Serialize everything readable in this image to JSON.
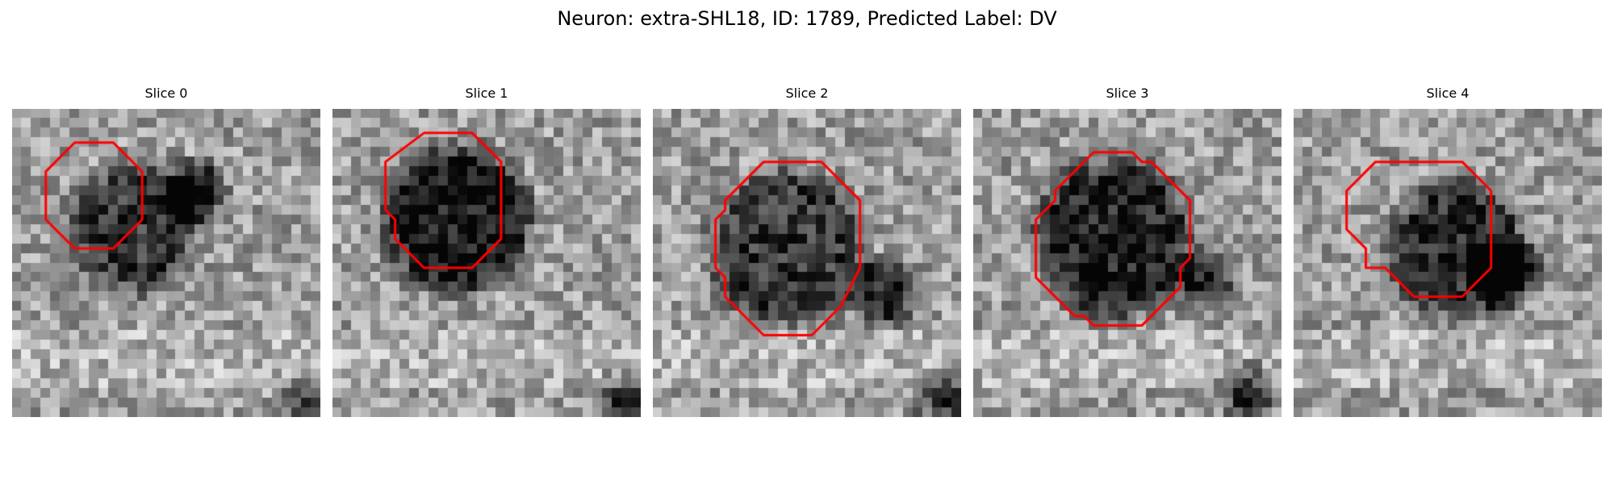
{
  "figure": {
    "title": "Neuron: extra-SHL18, ID: 1789, Predicted Label: DV"
  },
  "panels": [
    {
      "title": "Slice 0",
      "seed": 11,
      "blob": {
        "cx": 12.5,
        "cy": 12.5,
        "r": 6.0,
        "darkness": 0.4
      },
      "extra_blob": {
        "cx": 19.0,
        "cy": 8.5,
        "r": 2.5,
        "darkness": 0.6
      },
      "corner_dark": {
        "x": 30,
        "y": 30,
        "darkness": 0.45
      },
      "bright_bottom": true,
      "contour": [
        [
          6,
          3
        ],
        [
          10,
          3
        ],
        [
          13,
          6
        ],
        [
          13,
          11
        ],
        [
          10,
          14
        ],
        [
          6,
          14
        ],
        [
          3,
          11
        ],
        [
          3,
          6
        ]
      ]
    },
    {
      "title": "Slice 1",
      "seed": 23,
      "blob": {
        "cx": 13.0,
        "cy": 11.5,
        "r": 7.0,
        "darkness": 0.55
      },
      "extra_blob": null,
      "corner_dark": {
        "x": 30,
        "y": 30,
        "darkness": 0.6
      },
      "bright_bottom": true,
      "contour": [
        [
          9,
          2
        ],
        [
          14,
          2
        ],
        [
          17,
          5
        ],
        [
          17,
          13
        ],
        [
          14,
          16
        ],
        [
          9,
          16
        ],
        [
          6,
          13
        ],
        [
          6,
          11
        ],
        [
          5,
          10
        ],
        [
          5,
          5
        ]
      ]
    },
    {
      "title": "Slice 2",
      "seed": 37,
      "blob": {
        "cx": 14.0,
        "cy": 14.5,
        "r": 7.5,
        "darkness": 0.4
      },
      "extra_blob": {
        "cx": 24.0,
        "cy": 19.0,
        "r": 3.0,
        "darkness": 0.5
      },
      "corner_dark": {
        "x": 30,
        "y": 30,
        "darkness": 0.55
      },
      "bright_bottom": true,
      "contour": [
        [
          11,
          5
        ],
        [
          17,
          5
        ],
        [
          21,
          9
        ],
        [
          21,
          16
        ],
        [
          20,
          18
        ],
        [
          19,
          20
        ],
        [
          16,
          23
        ],
        [
          11,
          23
        ],
        [
          7,
          19
        ],
        [
          7,
          17
        ],
        [
          6,
          16
        ],
        [
          6,
          11
        ],
        [
          7,
          10
        ],
        [
          7,
          9
        ]
      ]
    },
    {
      "title": "Slice 3",
      "seed": 53,
      "blob": {
        "cx": 14.5,
        "cy": 13.5,
        "r": 7.5,
        "darkness": 0.5
      },
      "extra_blob": {
        "cx": 24.0,
        "cy": 18.0,
        "r": 2.5,
        "darkness": 0.45
      },
      "corner_dark": {
        "x": 28,
        "y": 29,
        "darkness": 0.6
      },
      "bright_bottom": true,
      "contour": [
        [
          12,
          4
        ],
        [
          16,
          4
        ],
        [
          17,
          5
        ],
        [
          18,
          5
        ],
        [
          22,
          9
        ],
        [
          22,
          15
        ],
        [
          21,
          16
        ],
        [
          21,
          18
        ],
        [
          17,
          22
        ],
        [
          12,
          22
        ],
        [
          11,
          21
        ],
        [
          10,
          21
        ],
        [
          6,
          17
        ],
        [
          6,
          11
        ],
        [
          8,
          9
        ],
        [
          8,
          8
        ]
      ]
    },
    {
      "title": "Slice 4",
      "seed": 71,
      "blob": {
        "cx": 17.0,
        "cy": 14.5,
        "r": 6.5,
        "darkness": 0.45
      },
      "extra_blob": {
        "cx": 22.0,
        "cy": 17.0,
        "r": 3.0,
        "darkness": 0.55
      },
      "corner_dark": null,
      "bright_bottom": true,
      "contour": [
        [
          11,
          5
        ],
        [
          17,
          5
        ],
        [
          20,
          8
        ],
        [
          20,
          16
        ],
        [
          17,
          19
        ],
        [
          12,
          19
        ],
        [
          9,
          16
        ],
        [
          7,
          16
        ],
        [
          7,
          14
        ],
        [
          5,
          12
        ],
        [
          5,
          8
        ],
        [
          8,
          5
        ]
      ]
    }
  ],
  "colors": {
    "contour": "#ff0000"
  }
}
